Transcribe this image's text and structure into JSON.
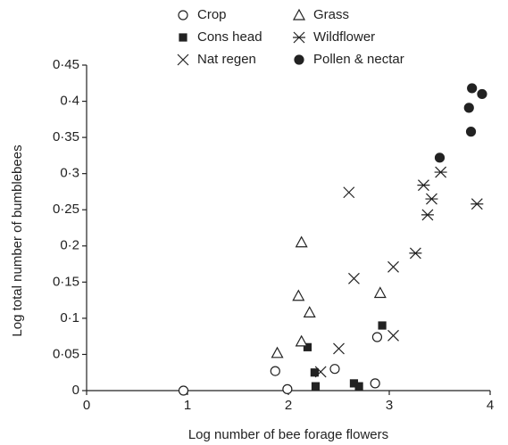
{
  "chart_data": {
    "type": "scatter",
    "x_label": "Log number of bee forage flowers",
    "y_label": "Log total number of bumblebees",
    "xlim": [
      0,
      4
    ],
    "xticks": [
      0,
      1,
      2,
      3,
      4
    ],
    "ylim": [
      0,
      0.45
    ],
    "yticks": [
      0,
      {
        "value": 0.05,
        "label": "0·05"
      },
      {
        "value": 0.1,
        "label": "0·1"
      },
      {
        "value": 0.15,
        "label": "0·15"
      },
      {
        "value": 0.2,
        "label": "0·2"
      },
      {
        "value": 0.25,
        "label": "0·25"
      },
      {
        "value": 0.3,
        "label": "0·3"
      },
      {
        "value": 0.35,
        "label": "0·35"
      },
      {
        "value": 0.4,
        "label": "0·4"
      },
      {
        "value": 0.45,
        "label": "0·45"
      }
    ],
    "series": [
      {
        "name": "Crop",
        "marker": "open-circle",
        "color": "#222",
        "x": [
          0.96,
          1.87,
          1.99,
          2.46,
          2.88,
          2.86
        ],
        "values": [
          0,
          0.027,
          0.002,
          0.03,
          0.074,
          0.01
        ]
      },
      {
        "name": "Cons head",
        "marker": "filled-square",
        "color": "#222",
        "x": [
          2.19,
          2.26,
          2.27,
          2.65,
          2.7,
          2.93
        ],
        "values": [
          0.06,
          0.025,
          0.006,
          0.01,
          0.006,
          0.09
        ]
      },
      {
        "name": "Nat regen",
        "marker": "cross",
        "color": "#222",
        "x": [
          2.6,
          2.65,
          3.04,
          2.32,
          2.5,
          3.04
        ],
        "values": [
          0.274,
          0.155,
          0.171,
          0.026,
          0.058,
          0.076
        ]
      },
      {
        "name": "Grass",
        "marker": "open-triangle",
        "color": "#222",
        "x": [
          2.13,
          2.1,
          2.21,
          2.13,
          1.89,
          2.91
        ],
        "values": [
          0.205,
          0.131,
          0.108,
          0.068,
          0.052,
          0.135
        ]
      },
      {
        "name": "Wildflower",
        "marker": "asterisk",
        "color": "#222",
        "x": [
          3.26,
          3.34,
          3.42,
          3.38,
          3.51,
          3.87
        ],
        "values": [
          0.19,
          0.284,
          0.265,
          0.243,
          0.302,
          0.258
        ]
      },
      {
        "name": "Pollen & nectar",
        "marker": "filled-circle",
        "color": "#222",
        "x": [
          3.5,
          3.79,
          3.82,
          3.92,
          3.81
        ],
        "values": [
          0.322,
          0.391,
          0.418,
          0.41,
          0.358
        ]
      }
    ]
  }
}
